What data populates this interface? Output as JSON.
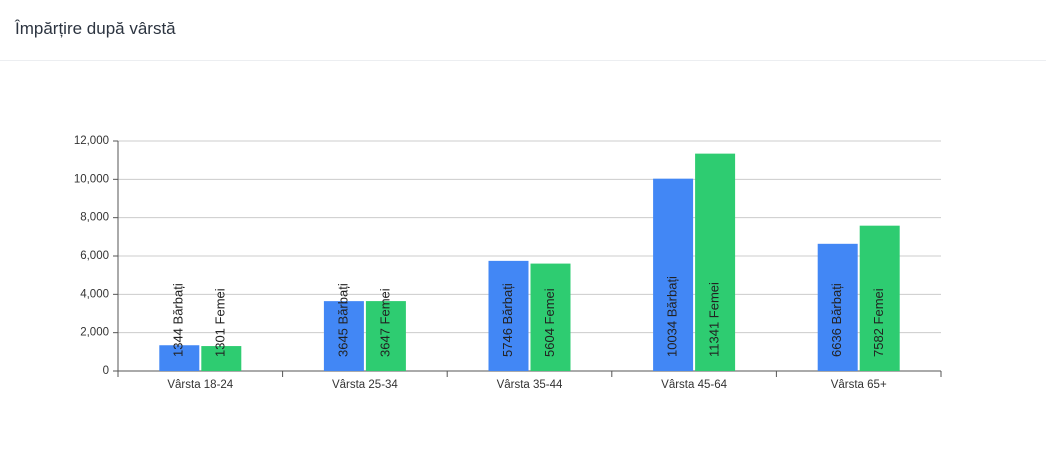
{
  "chart_data": {
    "type": "bar",
    "title": "Împărțire după vârstă",
    "categories": [
      "Vârsta 18-24",
      "Vârsta 25-34",
      "Vârsta 35-44",
      "Vârsta 45-64",
      "Vârsta 65+"
    ],
    "series": [
      {
        "color": "#4287f5",
        "values": [
          1344,
          3645,
          5746,
          10034,
          6636
        ],
        "value_labels": [
          "1344 Bărbați",
          "3645 Bărbați",
          "5746 Bărbați",
          "10034 Bărbați",
          "6636 Bărbați"
        ]
      },
      {
        "color": "#2ecc71",
        "values": [
          1301,
          3647,
          5604,
          11341,
          7582
        ],
        "value_labels": [
          "1301 Femei",
          "3647 Femei",
          "5604 Femei",
          "11341 Femei",
          "7582 Femei"
        ]
      }
    ],
    "ylim": [
      0,
      12000
    ],
    "yticks": [
      0,
      {
        "value": 2000,
        "label": "2,000"
      },
      {
        "value": 4000,
        "label": "4,000"
      },
      {
        "value": 6000,
        "label": "6,000"
      },
      {
        "value": 8000,
        "label": "8,000"
      },
      {
        "value": 10000,
        "label": "10,000"
      },
      {
        "value": 12000,
        "label": "12,000"
      }
    ],
    "grid": true
  }
}
